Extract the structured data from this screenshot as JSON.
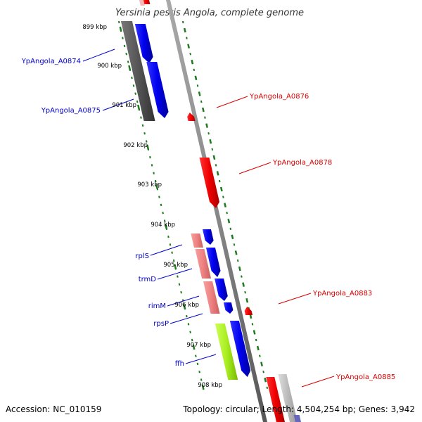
{
  "title": "Yersinia pestis Angola, complete genome",
  "footer": {
    "accession": "Accession: NC_010159",
    "summary": "Topology: circular; Length: 4,504,254 bp; Genes: 3,942"
  },
  "colors": {
    "forward_label": "#0000cc",
    "reverse_label": "#dd0000",
    "tick": "#1e7b1e",
    "backbone": "#888888"
  },
  "ticks": [
    "899 kbp",
    "900 kbp",
    "901 kbp",
    "902 kbp",
    "903 kbp",
    "904 kbp",
    "905 kbp",
    "906 kbp",
    "907 kbp",
    "908 kbp"
  ],
  "gene_labels": [
    {
      "name": "YpAngola_A0874",
      "strand": "forward"
    },
    {
      "name": "YpAngola_A0875",
      "strand": "forward"
    },
    {
      "name": "YpAngola_A0876",
      "strand": "reverse"
    },
    {
      "name": "YpAngola_A0878",
      "strand": "reverse"
    },
    {
      "name": "rplS",
      "strand": "forward"
    },
    {
      "name": "trmD",
      "strand": "forward"
    },
    {
      "name": "rimM",
      "strand": "forward"
    },
    {
      "name": "rpsP",
      "strand": "forward"
    },
    {
      "name": "YpAngola_A0883",
      "strand": "reverse"
    },
    {
      "name": "ffh",
      "strand": "forward"
    },
    {
      "name": "YpAngola_A0885",
      "strand": "reverse"
    }
  ]
}
